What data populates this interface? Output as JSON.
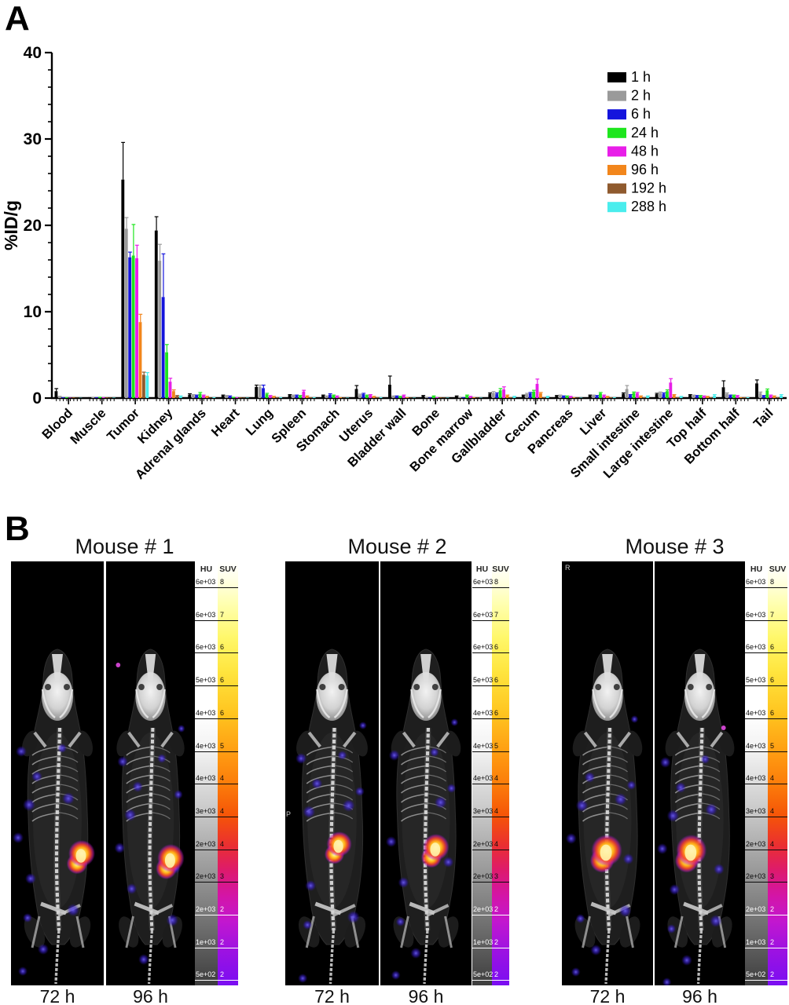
{
  "figure": {
    "panel_a_label": "A",
    "panel_b_label": "B"
  },
  "chart_data": {
    "type": "bar",
    "title": "",
    "ylabel": "%ID/g",
    "xlabel": "",
    "ylim": [
      0,
      40
    ],
    "y_major_ticks": [
      0,
      10,
      20,
      30,
      40
    ],
    "y_minor_step": 2,
    "grid": false,
    "legend_position": "upper right",
    "categories": [
      "Blood",
      "Muscle",
      "Tumor",
      "Kidney",
      "Adrenal glands",
      "Heart",
      "Lung",
      "Spleen",
      "Stomach",
      "Uterus",
      "Bladder wall",
      "Bone",
      "Bone marrow",
      "Gallbladder",
      "Cecum",
      "Pancreas",
      "Liver",
      "Small intestine",
      "Large intestine",
      "Top half",
      "Bottom half",
      "Tail"
    ],
    "series": [
      {
        "name": "1 h",
        "color": "#000000",
        "values": [
          0.8,
          0.1,
          25.3,
          19.4,
          0.4,
          0.3,
          1.3,
          0.35,
          0.3,
          1.05,
          1.55,
          0.25,
          0.2,
          0.5,
          0.3,
          0.25,
          0.3,
          0.5,
          0.45,
          0.35,
          1.25,
          1.7
        ],
        "errors": [
          0.3,
          0,
          4.3,
          1.6,
          0.1,
          0.05,
          0.2,
          0.05,
          0.05,
          0.4,
          1.0,
          0.05,
          0.05,
          0.1,
          0.05,
          0.05,
          0.05,
          0.1,
          0.1,
          0.05,
          0.75,
          0.4
        ]
      },
      {
        "name": "2 h",
        "color": "#9a9a9a",
        "values": [
          0.15,
          0.1,
          19.6,
          15.9,
          0.35,
          0.25,
          1.3,
          0.3,
          0.2,
          0.35,
          0.2,
          0.15,
          0.15,
          0.6,
          0.45,
          0.3,
          0.3,
          1.05,
          0.6,
          0.3,
          0.5,
          0.6
        ],
        "errors": [
          0.05,
          0,
          1.3,
          1.9,
          0.05,
          0.05,
          0.2,
          0.05,
          0.05,
          0.1,
          0.05,
          0,
          0,
          0.15,
          0.1,
          0.05,
          0.05,
          0.4,
          0.1,
          0.05,
          0.1,
          0.1
        ]
      },
      {
        "name": "6 h",
        "color": "#1414dd",
        "values": [
          0.1,
          0.1,
          16.3,
          11.7,
          0.3,
          0.2,
          1.15,
          0.3,
          0.4,
          0.45,
          0.2,
          0.1,
          0.1,
          0.5,
          0.55,
          0.2,
          0.25,
          0.35,
          0.5,
          0.25,
          0.3,
          0.25
        ],
        "errors": [
          0,
          0,
          0.6,
          5.0,
          0.05,
          0.05,
          0.35,
          0.05,
          0.1,
          0.1,
          0.05,
          0,
          0,
          0.1,
          0.1,
          0.05,
          0.05,
          0.05,
          0.1,
          0.05,
          0.05,
          0.05
        ]
      },
      {
        "name": "24 h",
        "color": "#1ee61e",
        "values": [
          0.1,
          0.15,
          16.5,
          5.3,
          0.5,
          0.15,
          0.45,
          0.25,
          0.3,
          0.3,
          0.15,
          0.2,
          0.3,
          0.9,
          0.75,
          0.2,
          0.55,
          0.6,
          0.8,
          0.25,
          0.3,
          0.9
        ],
        "errors": [
          0,
          0,
          3.6,
          0.9,
          0.15,
          0,
          0.1,
          0.05,
          0.05,
          0.05,
          0.05,
          0.05,
          0.05,
          0.2,
          0.15,
          0.05,
          0.1,
          0.1,
          0.15,
          0.05,
          0.05,
          0.15
        ]
      },
      {
        "name": "48 h",
        "color": "#e81ee8",
        "values": [
          0.05,
          0.1,
          16.2,
          1.9,
          0.3,
          0.1,
          0.25,
          0.75,
          0.2,
          0.35,
          0.3,
          0.1,
          0.15,
          1.0,
          1.65,
          0.15,
          0.3,
          0.55,
          1.8,
          0.2,
          0.25,
          0.3
        ],
        "errors": [
          0,
          0,
          1.5,
          0.4,
          0.05,
          0,
          0.05,
          0.15,
          0.05,
          0.05,
          0.05,
          0,
          0.05,
          0.3,
          0.55,
          0.05,
          0.05,
          0.1,
          0.45,
          0.05,
          0.05,
          0.05
        ]
      },
      {
        "name": "96 h",
        "color": "#f2861c",
        "values": [
          0.05,
          0.05,
          8.8,
          0.8,
          0.15,
          0.05,
          0.15,
          0.2,
          0.1,
          0.15,
          0.1,
          0.05,
          0.1,
          0.3,
          0.55,
          0.1,
          0.15,
          0.2,
          0.35,
          0.15,
          0.1,
          0.2
        ],
        "errors": [
          0,
          0,
          0.9,
          0.15,
          0.05,
          0,
          0.05,
          0.05,
          0,
          0.05,
          0,
          0,
          0,
          0.05,
          0.1,
          0,
          0.05,
          0.05,
          0.05,
          0.05,
          0,
          0.05
        ]
      },
      {
        "name": "192 h",
        "color": "#8f5a2e",
        "values": [
          0.03,
          0.05,
          2.7,
          0.25,
          0.05,
          0.05,
          0.1,
          0.1,
          0.05,
          0.1,
          0.05,
          0.05,
          0.05,
          0.1,
          0.1,
          0.05,
          0.1,
          0.1,
          0.1,
          0.1,
          0.1,
          0.1
        ],
        "errors": [
          0,
          0,
          0.3,
          0.05,
          0,
          0,
          0,
          0,
          0,
          0,
          0,
          0,
          0,
          0,
          0,
          0,
          0,
          0,
          0,
          0,
          0,
          0
        ]
      },
      {
        "name": "288 h",
        "color": "#4aeded",
        "values": [
          0.03,
          0.05,
          2.6,
          0.2,
          0.1,
          0.05,
          0.1,
          0.1,
          0.05,
          0.1,
          0.05,
          0.05,
          0.05,
          0.15,
          0.15,
          0.05,
          0.1,
          0.2,
          0.15,
          0.3,
          0.1,
          0.3
        ],
        "errors": [
          0,
          0,
          0.35,
          0.05,
          0,
          0,
          0,
          0,
          0,
          0,
          0,
          0,
          0,
          0.05,
          0.05,
          0,
          0,
          0.05,
          0.05,
          0.1,
          0,
          0.1
        ]
      }
    ]
  },
  "panel_b": {
    "mice": [
      {
        "title": "Mouse # 1",
        "time_labels": [
          "72 h",
          "96 h"
        ],
        "marker": ""
      },
      {
        "title": "Mouse # 2",
        "time_labels": [
          "72 h",
          "96 h"
        ],
        "marker": "P"
      },
      {
        "title": "Mouse # 3",
        "time_labels": [
          "72 h",
          "96 h"
        ],
        "marker": "R"
      }
    ],
    "scale": {
      "hu_header": "HU",
      "suv_header": "SUV",
      "rows": [
        {
          "hu": "6e+03",
          "suv": "8"
        },
        {
          "hu": "6e+03",
          "suv": "7"
        },
        {
          "hu": "6e+03",
          "suv": "6"
        },
        {
          "hu": "5e+03",
          "suv": "6"
        },
        {
          "hu": "4e+03",
          "suv": "6"
        },
        {
          "hu": "4e+03",
          "suv": "5"
        },
        {
          "hu": "4e+03",
          "suv": "4"
        },
        {
          "hu": "3e+03",
          "suv": "4"
        },
        {
          "hu": "2e+03",
          "suv": "4"
        },
        {
          "hu": "2e+03",
          "suv": "3"
        },
        {
          "hu": "2e+03",
          "suv": "2"
        },
        {
          "hu": "1e+03",
          "suv": "2"
        },
        {
          "hu": "5e+02",
          "suv": "2"
        }
      ]
    }
  }
}
